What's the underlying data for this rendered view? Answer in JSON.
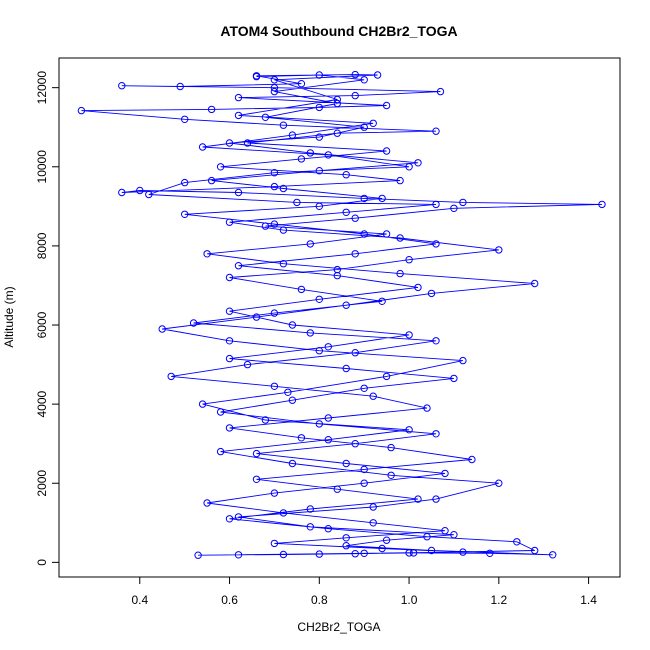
{
  "chart_data": {
    "type": "line",
    "title": "ATOM4 Southbound CH2Br2_TOGA",
    "xlabel": "CH2Br2_TOGA",
    "ylabel": "Altitude (m)",
    "xlim": [
      0.22,
      1.47
    ],
    "ylim": [
      -370,
      12750
    ],
    "xticks": [
      "0.4",
      "0.6",
      "0.8",
      "1.0",
      "1.2",
      "1.4"
    ],
    "xtick_values": [
      0.4,
      0.6,
      0.8,
      1.0,
      1.2,
      1.4
    ],
    "yticks": [
      "0",
      "2000",
      "4000",
      "6000",
      "8000",
      "10000",
      "12000"
    ],
    "ytick_values": [
      0,
      2000,
      4000,
      6000,
      8000,
      10000,
      12000
    ],
    "grid": false,
    "marker": "open-circle",
    "series": [
      {
        "color": "#0000ff",
        "points": [
          [
            0.53,
            180
          ],
          [
            0.72,
            200
          ],
          [
            0.88,
            220
          ],
          [
            1.01,
            240
          ],
          [
            1.18,
            230
          ],
          [
            1.32,
            190
          ],
          [
            1.05,
            300
          ],
          [
            0.86,
            420
          ],
          [
            0.95,
            560
          ],
          [
            1.1,
            700
          ],
          [
            0.78,
            900
          ],
          [
            0.62,
            1150
          ],
          [
            0.92,
            1400
          ],
          [
            1.06,
            1600
          ],
          [
            1.2,
            2000
          ],
          [
            0.96,
            2200
          ],
          [
            0.74,
            2500
          ],
          [
            0.58,
            2800
          ],
          [
            0.82,
            3100
          ],
          [
            1.0,
            3350
          ],
          [
            0.68,
            3600
          ],
          [
            0.54,
            4000
          ],
          [
            0.73,
            4300
          ],
          [
            0.95,
            4700
          ],
          [
            1.12,
            5100
          ],
          [
            0.8,
            5350
          ],
          [
            0.6,
            5600
          ],
          [
            0.45,
            5900
          ],
          [
            0.66,
            6200
          ],
          [
            0.86,
            6500
          ],
          [
            1.05,
            6800
          ],
          [
            1.28,
            7050
          ],
          [
            0.98,
            7300
          ],
          [
            0.72,
            7550
          ],
          [
            0.55,
            7800
          ],
          [
            0.78,
            8050
          ],
          [
            0.95,
            8300
          ],
          [
            0.68,
            8500
          ],
          [
            0.88,
            8700
          ],
          [
            1.1,
            8950
          ],
          [
            1.43,
            9050
          ],
          [
            1.12,
            9100
          ],
          [
            0.9,
            9200
          ],
          [
            0.62,
            9350
          ],
          [
            0.4,
            9400
          ],
          [
            0.36,
            9350
          ],
          [
            0.7,
            9500
          ],
          [
            0.98,
            9650
          ],
          [
            0.86,
            9800
          ],
          [
            0.58,
            10000
          ],
          [
            0.76,
            10200
          ],
          [
            0.95,
            10400
          ],
          [
            0.64,
            10600
          ],
          [
            0.84,
            10850
          ],
          [
            1.06,
            10900
          ],
          [
            0.72,
            11050
          ],
          [
            0.5,
            11200
          ],
          [
            0.27,
            11420
          ],
          [
            0.56,
            11450
          ],
          [
            0.8,
            11500
          ],
          [
            0.95,
            11550
          ],
          [
            0.62,
            11750
          ],
          [
            0.88,
            11800
          ],
          [
            1.07,
            11900
          ],
          [
            0.7,
            12000
          ],
          [
            0.36,
            12050
          ],
          [
            0.49,
            12030
          ],
          [
            0.76,
            12100
          ],
          [
            0.66,
            12300
          ],
          [
            0.88,
            12330
          ],
          [
            0.93,
            12320
          ],
          [
            0.7,
            12200
          ],
          [
            0.84,
            11700
          ],
          [
            0.62,
            11300
          ],
          [
            0.92,
            11100
          ],
          [
            0.74,
            10800
          ],
          [
            0.54,
            10500
          ],
          [
            0.82,
            10300
          ],
          [
            1.0,
            10000
          ],
          [
            0.7,
            9850
          ],
          [
            0.5,
            9600
          ],
          [
            0.42,
            9300
          ],
          [
            0.75,
            9100
          ],
          [
            1.06,
            9050
          ],
          [
            0.86,
            8850
          ],
          [
            0.6,
            8600
          ],
          [
            0.72,
            8400
          ],
          [
            0.98,
            8200
          ],
          [
            1.2,
            7900
          ],
          [
            1.0,
            7650
          ],
          [
            0.84,
            7400
          ],
          [
            0.6,
            7200
          ],
          [
            0.76,
            6900
          ],
          [
            0.94,
            6600
          ],
          [
            0.7,
            6300
          ],
          [
            0.52,
            6050
          ],
          [
            0.78,
            5800
          ],
          [
            1.06,
            5600
          ],
          [
            0.88,
            5300
          ],
          [
            0.64,
            5000
          ],
          [
            0.47,
            4700
          ],
          [
            0.7,
            4450
          ],
          [
            0.92,
            4200
          ],
          [
            1.04,
            3900
          ],
          [
            0.82,
            3650
          ],
          [
            0.6,
            3400
          ],
          [
            0.76,
            3150
          ],
          [
            0.96,
            2900
          ],
          [
            1.14,
            2600
          ],
          [
            0.9,
            2350
          ],
          [
            0.66,
            2100
          ],
          [
            0.84,
            1850
          ],
          [
            1.02,
            1600
          ],
          [
            0.78,
            1350
          ],
          [
            0.6,
            1100
          ],
          [
            0.82,
            850
          ],
          [
            1.04,
            650
          ],
          [
            1.24,
            520
          ],
          [
            1.28,
            300
          ],
          [
            1.0,
            240
          ],
          [
            0.8,
            210
          ],
          [
            0.62,
            190
          ],
          [
            0.9,
            230
          ],
          [
            1.12,
            260
          ],
          [
            0.94,
            350
          ],
          [
            0.7,
            480
          ],
          [
            0.86,
            620
          ],
          [
            1.08,
            800
          ],
          [
            0.92,
            1000
          ],
          [
            0.72,
            1250
          ],
          [
            0.55,
            1500
          ],
          [
            0.7,
            1750
          ],
          [
            0.9,
            2000
          ],
          [
            1.08,
            2250
          ],
          [
            0.86,
            2500
          ],
          [
            0.66,
            2750
          ],
          [
            0.88,
            3000
          ],
          [
            1.06,
            3250
          ],
          [
            0.8,
            3500
          ],
          [
            0.58,
            3800
          ],
          [
            0.74,
            4100
          ],
          [
            0.9,
            4400
          ],
          [
            1.1,
            4650
          ],
          [
            0.86,
            4900
          ],
          [
            0.6,
            5150
          ],
          [
            0.82,
            5450
          ],
          [
            1.0,
            5750
          ],
          [
            0.74,
            6000
          ],
          [
            0.6,
            6350
          ],
          [
            0.8,
            6650
          ],
          [
            1.02,
            6950
          ],
          [
            0.84,
            7250
          ],
          [
            0.62,
            7500
          ],
          [
            0.88,
            7800
          ],
          [
            1.06,
            8050
          ],
          [
            0.9,
            8300
          ],
          [
            0.7,
            8550
          ],
          [
            0.5,
            8800
          ],
          [
            0.8,
            9000
          ],
          [
            0.94,
            9200
          ],
          [
            0.72,
            9450
          ],
          [
            0.56,
            9650
          ],
          [
            0.8,
            9900
          ],
          [
            1.02,
            10100
          ],
          [
            0.78,
            10350
          ],
          [
            0.6,
            10600
          ],
          [
            0.8,
            10750
          ],
          [
            0.9,
            11000
          ],
          [
            0.68,
            11250
          ],
          [
            0.84,
            11600
          ],
          [
            0.7,
            11900
          ],
          [
            0.9,
            12200
          ],
          [
            0.8,
            12320
          ],
          [
            0.66,
            12280
          ]
        ]
      }
    ]
  }
}
